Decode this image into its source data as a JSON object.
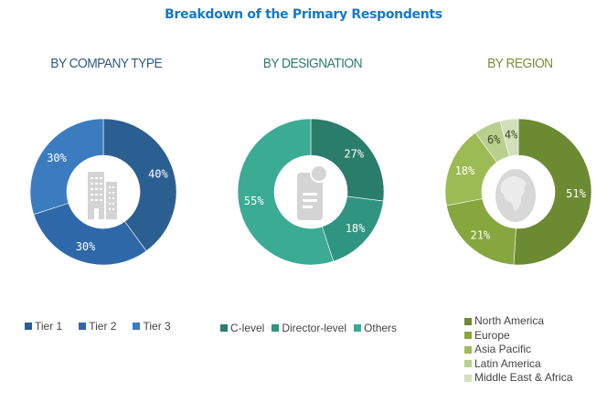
{
  "title": "Breakdown of the Primary Respondents",
  "chart_data": [
    {
      "type": "pie",
      "title": "BY COMPANY TYPE",
      "title_color": "#2e5a86",
      "categories": [
        "Tier 1",
        "Tier 2",
        "Tier 3"
      ],
      "values": [
        40,
        30,
        30
      ],
      "labels": [
        "40%",
        "30%",
        "30%"
      ],
      "colors": [
        "#2c5f91",
        "#2e68a8",
        "#3b7cc0"
      ],
      "icon": "building-icon",
      "legend": "bottom"
    },
    {
      "type": "pie",
      "title": "BY DESIGNATION",
      "title_color": "#2f7a6b",
      "categories": [
        "C-level",
        "Director-level",
        "Others"
      ],
      "values": [
        27,
        18,
        55
      ],
      "labels": [
        "27%",
        "18%",
        "55%"
      ],
      "colors": [
        "#2a7d6a",
        "#2f9580",
        "#3bab94"
      ],
      "icon": "certificate-document-icon",
      "legend": "bottom"
    },
    {
      "type": "pie",
      "title": "BY REGION",
      "title_color": "#7a8c3a",
      "categories": [
        "North America",
        "Europe",
        "Asia Pacific",
        "Latin America",
        "Middle East & Africa"
      ],
      "values": [
        51,
        21,
        18,
        6,
        4
      ],
      "labels": [
        "51%",
        "21%",
        "18%",
        "6%",
        "4%"
      ],
      "colors": [
        "#6c8a32",
        "#86a63e",
        "#9dbb55",
        "#b9cf8e",
        "#d3dfbc"
      ],
      "icon": "globe-icon",
      "legend": "bottom"
    }
  ]
}
